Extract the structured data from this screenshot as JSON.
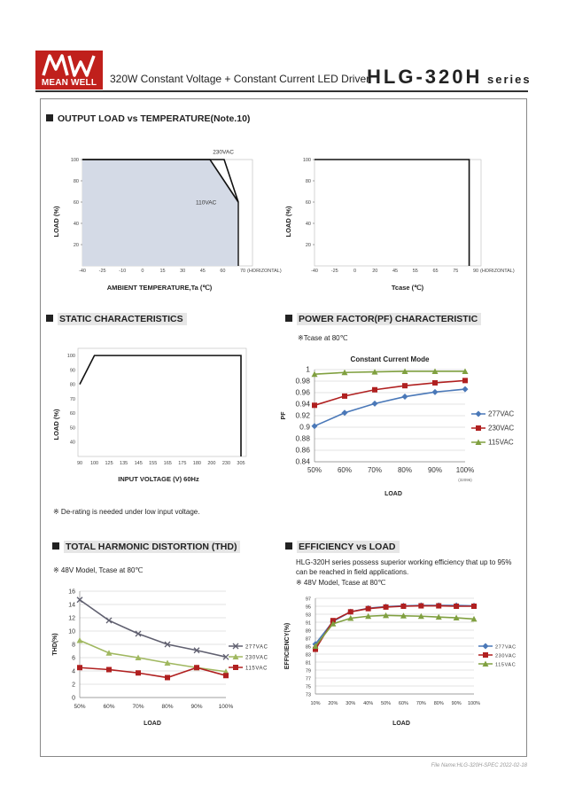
{
  "header": {
    "logo_text": "MEAN WELL",
    "title": "320W Constant Voltage + Constant Current LED Driver",
    "series": "HLG-320H",
    "series_word": "series"
  },
  "sections": {
    "derating": {
      "title": "OUTPUT LOAD vs TEMPERATURE(Note.10)"
    },
    "static": {
      "title": "STATIC CHARACTERISTICS",
      "note": "※ De-rating is needed under low input voltage."
    },
    "pf": {
      "title": "POWER FACTOR(PF) CHARACTERISTIC",
      "note": "※Tcase at 80℃"
    },
    "thd": {
      "title": "TOTAL HARMONIC DISTORTION (THD)",
      "note": "※ 48V Model, Tcase at 80℃"
    },
    "eff": {
      "title": "EFFICIENCY vs LOAD",
      "intro_line1": "HLG-320H series possess superior working efficiency that up to 95%",
      "intro_line2": "can be reached in field applications.",
      "note": "※ 48V Model, Tcase at 80℃"
    }
  },
  "footer": {
    "file_name": "File Name:HLG-320H-SPEC   2022-02-18"
  },
  "chart_data": [
    {
      "id": "derating_ambient",
      "type": "area",
      "xlabel": "AMBIENT TEMPERATURE,Ta (℃)",
      "ylabel": "LOAD (%)",
      "x_ticks": [
        "-40",
        "-25",
        "-10",
        "0",
        "15",
        "30",
        "45",
        "60",
        "70"
      ],
      "x_extra": "(HORIZONTAL)",
      "y_ticks": [
        "20",
        "40",
        "60",
        "80",
        "100"
      ],
      "xlim": [
        -40,
        80
      ],
      "ylim": [
        0,
        100
      ],
      "series": [
        {
          "name": "230VAC",
          "points": [
            [
              -40,
              100
            ],
            [
              60,
              100
            ],
            [
              70,
              60
            ]
          ]
        },
        {
          "name": "110VAC",
          "points": [
            [
              -40,
              100
            ],
            [
              50,
              100
            ],
            [
              70,
              60
            ]
          ]
        }
      ],
      "fill_color": "#d4dae6"
    },
    {
      "id": "derating_case",
      "type": "line",
      "xlabel": "Tcase (℃)",
      "ylabel": "LOAD (%)",
      "x_ticks": [
        "-40",
        "-25",
        "0",
        "20",
        "45",
        "55",
        "65",
        "75",
        "90"
      ],
      "x_extra": "(HORIZONTAL)",
      "y_ticks": [
        "20",
        "40",
        "60",
        "80",
        "100"
      ],
      "xlim": [
        -40,
        100
      ],
      "ylim": [
        0,
        100
      ],
      "series": [
        {
          "points": [
            [
              -40,
              100
            ],
            [
              90,
              100
            ],
            [
              90,
              0
            ]
          ]
        }
      ]
    },
    {
      "id": "static",
      "type": "line",
      "xlabel": "INPUT VOLTAGE (V) 60Hz",
      "ylabel": "LOAD (%)",
      "x_ticks": [
        "90",
        "100",
        "125",
        "135",
        "145",
        "155",
        "165",
        "175",
        "180",
        "200",
        "230",
        "305"
      ],
      "y_ticks": [
        "40",
        "50",
        "60",
        "70",
        "80",
        "90",
        "100"
      ],
      "ylim": [
        30,
        105
      ],
      "series": [
        {
          "points": [
            [
              90,
              80
            ],
            [
              100,
              100
            ],
            [
              305,
              100
            ],
            [
              305,
              30
            ]
          ]
        }
      ]
    },
    {
      "id": "pf",
      "type": "line",
      "title": "Constant Current Mode",
      "xlabel": "LOAD",
      "ylabel": "PF",
      "categories": [
        "50%",
        "60%",
        "70%",
        "80%",
        "90%",
        "100%"
      ],
      "x_note": "(32096)",
      "y_ticks": [
        "0.84",
        "0.86",
        "0.88",
        "0.9",
        "0.92",
        "0.94",
        "0.96",
        "0.98",
        "1"
      ],
      "ylim": [
        0.84,
        1.0
      ],
      "series": [
        {
          "name": "277VAC",
          "values": [
            0.902,
            0.925,
            0.941,
            0.953,
            0.961,
            0.966
          ],
          "color": "#4a78b8"
        },
        {
          "name": "230VAC",
          "values": [
            0.938,
            0.954,
            0.965,
            0.972,
            0.977,
            0.981
          ],
          "color": "#b02020"
        },
        {
          "name": "115VAC",
          "values": [
            0.992,
            0.995,
            0.996,
            0.997,
            0.997,
            0.997
          ],
          "color": "#80a040"
        }
      ]
    },
    {
      "id": "thd",
      "type": "line",
      "xlabel": "LOAD",
      "ylabel": "THD(%)",
      "categories": [
        "50%",
        "60%",
        "70%",
        "80%",
        "90%",
        "100%"
      ],
      "y_ticks": [
        "0",
        "2",
        "4",
        "6",
        "8",
        "10",
        "12",
        "14",
        "16"
      ],
      "ylim": [
        0,
        16
      ],
      "series": [
        {
          "name": "277VAC",
          "values": [
            14.7,
            11.6,
            9.6,
            8.0,
            7.1,
            6.1
          ],
          "color": "#606070"
        },
        {
          "name": "230VAC",
          "values": [
            8.6,
            6.7,
            6.0,
            5.2,
            4.5,
            3.9
          ],
          "color": "#a0b860"
        },
        {
          "name": "115VAC",
          "values": [
            4.5,
            4.2,
            3.7,
            3.0,
            4.5,
            3.3
          ],
          "color": "#b02020"
        }
      ]
    },
    {
      "id": "efficiency",
      "type": "line",
      "xlabel": "LOAD",
      "ylabel": "EFFICIENCY(%)",
      "categories": [
        "10%",
        "20%",
        "30%",
        "40%",
        "50%",
        "60%",
        "70%",
        "80%",
        "90%",
        "100%"
      ],
      "y_ticks": [
        "73",
        "75",
        "77",
        "79",
        "81",
        "83",
        "85",
        "87",
        "89",
        "91",
        "93",
        "95",
        "97"
      ],
      "ylim": [
        73,
        97
      ],
      "series": [
        {
          "name": "277VAC",
          "values": [
            85.5,
            91.2,
            93.6,
            94.5,
            94.9,
            95.1,
            95.2,
            95.2,
            95.2,
            95.1
          ],
          "color": "#4a78b8"
        },
        {
          "name": "230VAC",
          "values": [
            84.2,
            91.4,
            93.6,
            94.4,
            94.8,
            95.0,
            95.1,
            95.1,
            95.0,
            95.0
          ],
          "color": "#b02020"
        },
        {
          "name": "115VAC",
          "values": [
            85.0,
            90.6,
            92.0,
            92.5,
            92.7,
            92.6,
            92.5,
            92.3,
            92.1,
            91.8
          ],
          "color": "#80a040"
        }
      ]
    }
  ]
}
